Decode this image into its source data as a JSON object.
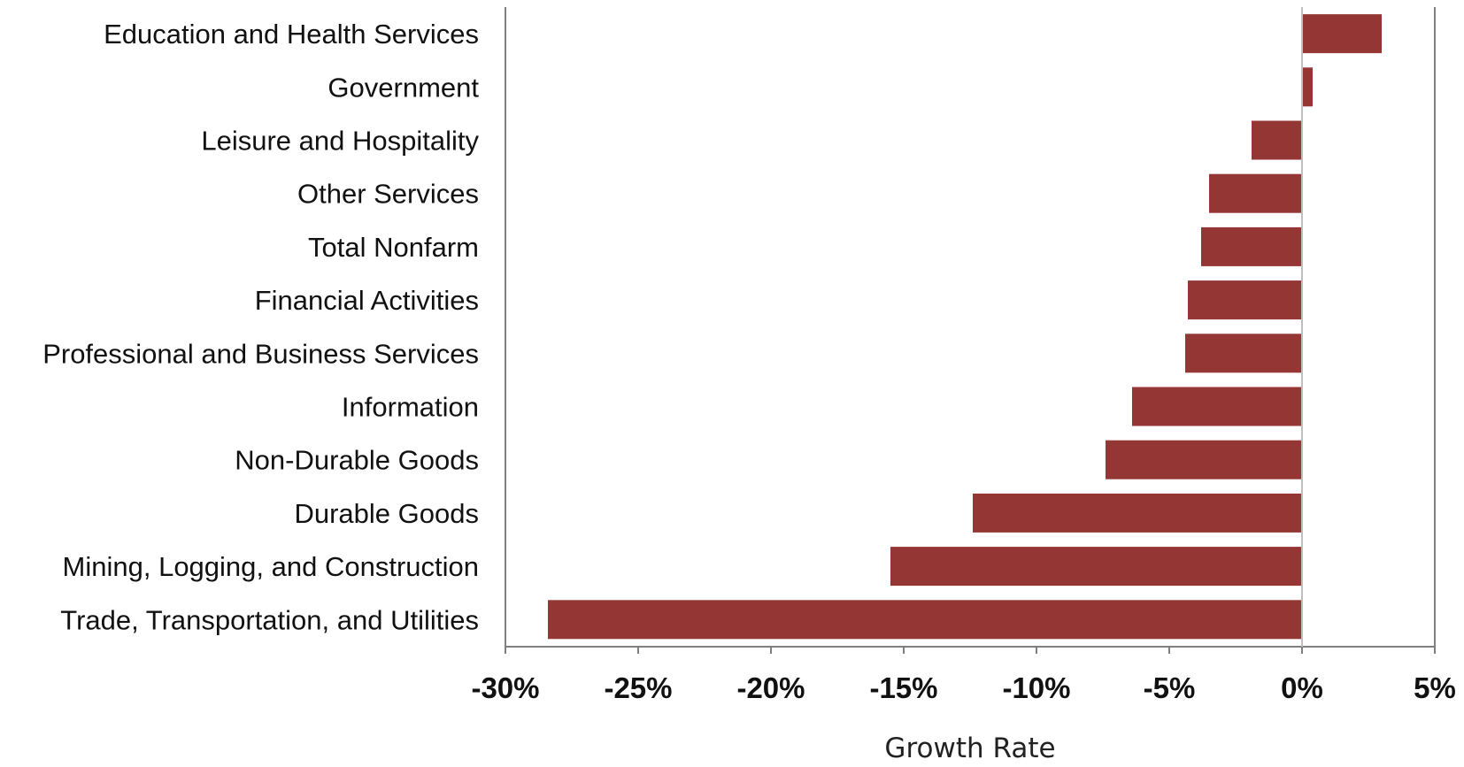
{
  "chart_data": {
    "type": "bar",
    "orientation": "horizontal",
    "title": "",
    "xlabel": "Growth Rate",
    "ylabel": "",
    "xlim": [
      -30,
      5
    ],
    "x_ticks": [
      -30,
      -25,
      -20,
      -15,
      -10,
      -5,
      0,
      5
    ],
    "x_tick_labels": [
      "-30%",
      "-25%",
      "-20%",
      "-15%",
      "-10%",
      "-5%",
      "0%",
      "5%"
    ],
    "categories": [
      "Education and Health Services",
      "Government",
      "Leisure and Hospitality",
      "Other Services",
      "Total Nonfarm",
      "Financial Activities",
      "Professional and Business Services",
      "Information",
      "Non-Durable Goods",
      "Durable Goods",
      "Mining, Logging, and Construction",
      "Trade, Transportation, and Utilities"
    ],
    "values": [
      3.0,
      0.4,
      -1.9,
      -3.5,
      -3.8,
      -4.3,
      -4.4,
      -6.4,
      -7.4,
      -12.4,
      -15.5,
      -28.4
    ],
    "grid": false,
    "legend": "none",
    "colors": {
      "bar": "#943634",
      "axis": "#7f7f7f",
      "text": "#111111"
    }
  }
}
